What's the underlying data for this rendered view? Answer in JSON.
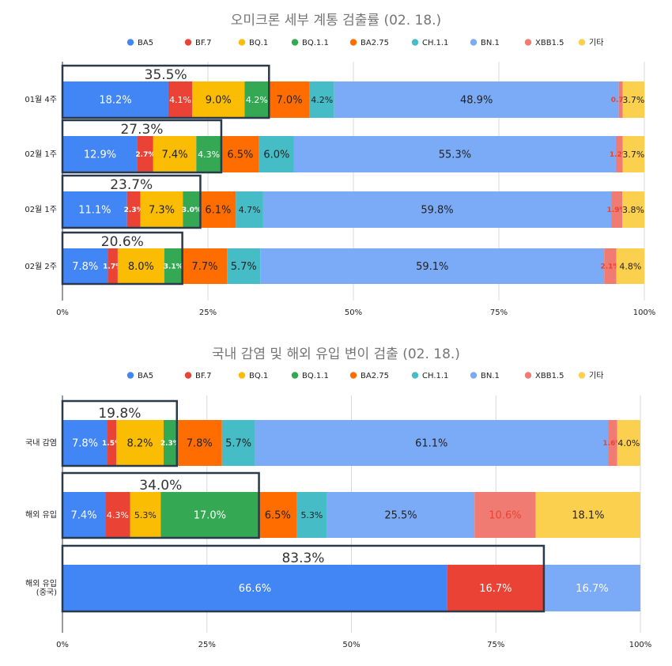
{
  "colors": {
    "BA5": "#4285f4",
    "BF.7": "#ea4335",
    "BQ.1": "#fbbc04",
    "BQ.1.1": "#34a853",
    "BA2.75": "#ff6d01",
    "CH.1.1": "#46bdc6",
    "BN.1": "#7baaf7",
    "XBB1.5": "#f07b72",
    "기타": "#fcd04f"
  },
  "chart_data": [
    {
      "type": "bar",
      "orientation": "horizontal",
      "stacked": true,
      "title": "오미크론 세부 계통 검출률 (02. 18.)",
      "legend": [
        "BA5",
        "BF.7",
        "BQ.1",
        "BQ.1.1",
        "BA2.75",
        "CH.1.1",
        "BN.1",
        "XBB1.5",
        "기타"
      ],
      "legend_position": "top",
      "categories": [
        "01월 4주",
        "02월 1주",
        "02월 1주",
        "02월 2주"
      ],
      "series": [
        {
          "name": "BA5",
          "values": [
            18.2,
            12.9,
            11.1,
            7.8
          ],
          "labels": [
            "18.2%",
            "12.9%",
            "11.1%",
            "7.8%"
          ]
        },
        {
          "name": "BF.7",
          "values": [
            4.1,
            2.7,
            2.3,
            1.7
          ],
          "labels": [
            "4.1%",
            "2.7%",
            "2.3%",
            "1.7%"
          ]
        },
        {
          "name": "BQ.1",
          "values": [
            9.0,
            7.4,
            7.3,
            8.0
          ],
          "labels": [
            "9.0%",
            "7.4%",
            "7.3%",
            "8.0%"
          ]
        },
        {
          "name": "BQ.1.1",
          "values": [
            4.2,
            4.3,
            3.0,
            3.1
          ],
          "labels": [
            "4.2%",
            "4.3%",
            "3.0%",
            "3.1%"
          ]
        },
        {
          "name": "BA2.75",
          "values": [
            7.0,
            6.5,
            6.1,
            7.7
          ],
          "labels": [
            "7.0%",
            "6.5%",
            "6.1%",
            "7.7%"
          ]
        },
        {
          "name": "CH.1.1",
          "values": [
            4.2,
            6.0,
            4.7,
            5.7
          ],
          "labels": [
            "4.2%",
            "6.0%",
            "4.7%",
            "5.7%"
          ]
        },
        {
          "name": "BN.1",
          "values": [
            48.9,
            55.3,
            59.8,
            59.1
          ],
          "labels": [
            "48.9%",
            "55.3%",
            "59.8%",
            "59.1%"
          ]
        },
        {
          "name": "XBB1.5",
          "values": [
            0.7,
            1.2,
            1.9,
            2.1
          ],
          "labels": [
            "0.7%",
            "1.2%",
            "1.9%",
            "2.1%"
          ]
        },
        {
          "name": "기타",
          "values": [
            3.7,
            3.7,
            3.8,
            4.8
          ],
          "labels": [
            "3.7%",
            "3.7%",
            "3.8%",
            "4.8%"
          ]
        }
      ],
      "highlights": [
        {
          "category_index": 0,
          "end_value": 35.5,
          "label": "35.5%"
        },
        {
          "category_index": 1,
          "end_value": 27.3,
          "label": "27.3%"
        },
        {
          "category_index": 2,
          "end_value": 23.7,
          "label": "23.7%"
        },
        {
          "category_index": 3,
          "end_value": 20.6,
          "label": "20.6%"
        }
      ],
      "xlim": [
        0,
        100
      ],
      "xticks": [
        0,
        25,
        50,
        75,
        100
      ],
      "xtick_labels": [
        "0%",
        "25%",
        "50%",
        "75%",
        "100%"
      ],
      "grid": true
    },
    {
      "type": "bar",
      "orientation": "horizontal",
      "stacked": true,
      "title": "국내 감염 및 해외 유입 변이 검출 (02. 18.)",
      "legend": [
        "BA5",
        "BF.7",
        "BQ.1",
        "BQ.1.1",
        "BA2.75",
        "CH.1.1",
        "BN.1",
        "XBB1.5",
        "기타"
      ],
      "legend_position": "top",
      "categories": [
        "국내 감염",
        "해외 유입",
        "해외 유입\n(중국)"
      ],
      "series": [
        {
          "name": "BA5",
          "values": [
            7.8,
            7.4,
            66.6
          ],
          "labels": [
            "7.8%",
            "7.4%",
            "66.6%"
          ]
        },
        {
          "name": "BF.7",
          "values": [
            1.5,
            4.3,
            16.7
          ],
          "labels": [
            "1.5%",
            "4.3%",
            "16.7%"
          ]
        },
        {
          "name": "BQ.1",
          "values": [
            8.2,
            5.3,
            0
          ],
          "labels": [
            "8.2%",
            "5.3%",
            ""
          ]
        },
        {
          "name": "BQ.1.1",
          "values": [
            2.3,
            17.0,
            0
          ],
          "labels": [
            "2.3%",
            "17.0%",
            ""
          ]
        },
        {
          "name": "BA2.75",
          "values": [
            7.8,
            6.5,
            0
          ],
          "labels": [
            "7.8%",
            "6.5%",
            ""
          ]
        },
        {
          "name": "CH.1.1",
          "values": [
            5.7,
            5.3,
            0
          ],
          "labels": [
            "5.7%",
            "5.3%",
            ""
          ]
        },
        {
          "name": "BN.1",
          "values": [
            61.1,
            25.5,
            16.7
          ],
          "labels": [
            "61.1%",
            "25.5%",
            "16.7%"
          ]
        },
        {
          "name": "XBB1.5",
          "values": [
            1.6,
            10.6,
            0
          ],
          "labels": [
            "1.6%",
            "10.6%",
            ""
          ]
        },
        {
          "name": "기타",
          "values": [
            4.0,
            18.1,
            0
          ],
          "labels": [
            "4.0%",
            "18.1%",
            ""
          ]
        }
      ],
      "highlights": [
        {
          "category_index": 0,
          "end_value": 19.8,
          "label": "19.8%"
        },
        {
          "category_index": 1,
          "end_value": 34.0,
          "label": "34.0%"
        },
        {
          "category_index": 2,
          "end_value": 83.3,
          "label": "83.3%"
        }
      ],
      "xlim": [
        0,
        100
      ],
      "xticks": [
        0,
        25,
        50,
        75,
        100
      ],
      "xtick_labels": [
        "0%",
        "25%",
        "50%",
        "75%",
        "100%"
      ],
      "grid": true
    }
  ]
}
